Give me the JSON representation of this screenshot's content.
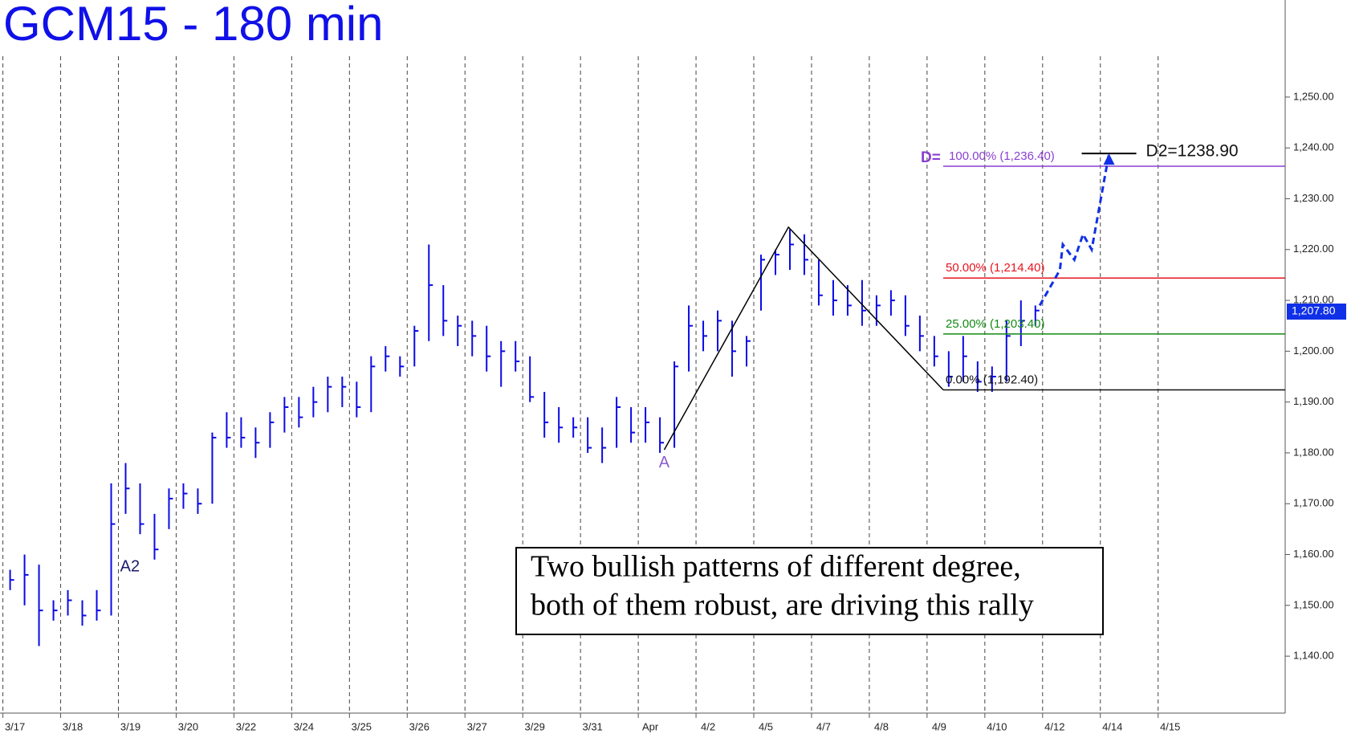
{
  "chart_data": {
    "type": "ohlc",
    "title": "GCM15 - 180 min",
    "color": "#0a0ae6",
    "grid_x": true,
    "xlim": [
      -0.05,
      22.2
    ],
    "ylim": [
      1128.8,
      1269.1
    ],
    "xticks": [
      {
        "value": 0,
        "label": "3/17"
      },
      {
        "value": 1,
        "label": "3/18"
      },
      {
        "value": 2,
        "label": "3/19"
      },
      {
        "value": 3,
        "label": "3/20"
      },
      {
        "value": 4,
        "label": "3/22"
      },
      {
        "value": 5,
        "label": "3/24"
      },
      {
        "value": 6,
        "label": "3/25"
      },
      {
        "value": 7,
        "label": "3/26"
      },
      {
        "value": 8,
        "label": "3/27"
      },
      {
        "value": 9,
        "label": "3/29"
      },
      {
        "value": 10,
        "label": "3/31"
      },
      {
        "value": 11,
        "label": "Apr"
      },
      {
        "value": 12,
        "label": "4/2"
      },
      {
        "value": 13,
        "label": "4/5"
      },
      {
        "value": 14,
        "label": "4/7"
      },
      {
        "value": 15,
        "label": "4/8"
      },
      {
        "value": 16,
        "label": "4/9"
      },
      {
        "value": 17,
        "label": "4/10"
      },
      {
        "value": 18,
        "label": "4/12"
      },
      {
        "value": 19,
        "label": "4/14"
      },
      {
        "value": 20,
        "label": "4/15"
      }
    ],
    "yticks": [
      {
        "value": 1140,
        "label": "1,140.00"
      },
      {
        "value": 1150,
        "label": "1,150.00"
      },
      {
        "value": 1160,
        "label": "1,160.00"
      },
      {
        "value": 1170,
        "label": "1,170.00"
      },
      {
        "value": 1180,
        "label": "1,180.00"
      },
      {
        "value": 1190,
        "label": "1,190.00"
      },
      {
        "value": 1200,
        "label": "1,200.00"
      },
      {
        "value": 1210,
        "label": "1,210.00"
      },
      {
        "value": 1220,
        "label": "1,220.00"
      },
      {
        "value": 1230,
        "label": "1,230.00"
      },
      {
        "value": 1240,
        "label": "1,240.00"
      },
      {
        "value": 1250,
        "label": "1,250.00"
      }
    ],
    "x": [
      0.125,
      0.375,
      0.625,
      0.875,
      1.125,
      1.375,
      1.625,
      1.875,
      2.125,
      2.375,
      2.625,
      2.875,
      3.125,
      3.375,
      3.625,
      3.875,
      4.125,
      4.375,
      4.625,
      4.875,
      5.125,
      5.375,
      5.625,
      5.875,
      6.125,
      6.375,
      6.625,
      6.875,
      7.125,
      7.375,
      7.625,
      7.875,
      8.125,
      8.375,
      8.625,
      8.875,
      9.125,
      9.375,
      9.625,
      9.875,
      10.125,
      10.375,
      10.625,
      10.875,
      11.125,
      11.375,
      11.625,
      11.875,
      12.125,
      12.375,
      12.625,
      12.875,
      13.125,
      13.375,
      13.625,
      13.875,
      14.125,
      14.375,
      14.625,
      14.875,
      15.125,
      15.375,
      15.625,
      15.875,
      16.125,
      16.375,
      16.625,
      16.875,
      17.125,
      17.375,
      17.625,
      17.875
    ],
    "high": [
      1157,
      1160,
      1158,
      1151,
      1153,
      1151,
      1153,
      1174,
      1178,
      1174,
      1168,
      1173,
      1174,
      1173,
      1184,
      1188,
      1187,
      1185,
      1188,
      1191,
      1191,
      1193,
      1195,
      1195,
      1194,
      1199,
      1201,
      1199,
      1205,
      1221,
      1213,
      1207,
      1206,
      1205,
      1202,
      1202,
      1199,
      1192,
      1189,
      1187,
      1187,
      1185,
      1191,
      1189,
      1189,
      1187,
      1198,
      1209,
      1206,
      1208,
      1206,
      1203,
      1219,
      1220,
      1224,
      1223,
      1218,
      1214,
      1213,
      1214,
      1211,
      1212,
      1211,
      1207,
      1203,
      1200,
      1203,
      1198,
      1197,
      1206,
      1210,
      1209
    ],
    "low": [
      1153,
      1150,
      1142,
      1147,
      1148,
      1146,
      1147,
      1148,
      1168,
      1164,
      1159,
      1165,
      1169,
      1168,
      1170,
      1181,
      1181,
      1179,
      1181,
      1184,
      1185,
      1187,
      1188,
      1189,
      1187,
      1188,
      1196,
      1195,
      1197,
      1202,
      1203,
      1201,
      1199,
      1196,
      1193,
      1196,
      1190,
      1183,
      1182,
      1183,
      1180,
      1178,
      1181,
      1182,
      1182,
      1180,
      1181,
      1196,
      1200,
      1200,
      1195,
      1197,
      1208,
      1215,
      1216,
      1215,
      1209,
      1207,
      1207,
      1205,
      1205,
      1207,
      1203,
      1200,
      1197,
      1193,
      1194,
      1192,
      1192,
      1194,
      1201,
      1205
    ],
    "close": [
      1155,
      1156,
      1149,
      1149,
      1151,
      1148,
      1149,
      1166,
      1173,
      1166,
      1161,
      1171,
      1172,
      1170,
      1183,
      1183,
      1183,
      1182,
      1186,
      1189,
      1187,
      1190,
      1193,
      1193,
      1189,
      1197,
      1199,
      1197,
      1204,
      1213,
      1206,
      1205,
      1203,
      1199,
      1200,
      1198,
      1191,
      1186,
      1185,
      1185,
      1181,
      1181,
      1189,
      1184,
      1186,
      1182,
      1197,
      1205,
      1203,
      1206,
      1200,
      1202,
      1218,
      1219,
      1221,
      1218,
      1211,
      1210,
      1209,
      1208,
      1209,
      1210,
      1205,
      1203,
      1199,
      1195,
      1199,
      1194,
      1195,
      1203,
      1206,
      1208
    ],
    "last_price": {
      "value": 1207.8,
      "label": "1,207.80"
    },
    "fib_levels": [
      {
        "prefix": "D=",
        "label": "100.00% (1,236.40)",
        "value": 1236.4,
        "color": "#8a3fd0"
      },
      {
        "label": "50.00% (1,214.40)",
        "value": 1214.4,
        "color": "#e8141e"
      },
      {
        "label": "25.00% (1,203.40)",
        "value": 1203.4,
        "color": "#138a13"
      },
      {
        "label": "0.00% (1,192.40)",
        "value": 1192.4,
        "color": "#111111"
      }
    ],
    "pattern": {
      "x": [
        11.45,
        13.6,
        16.28
      ],
      "values": [
        1180.6,
        1224.4,
        1192.4
      ]
    },
    "projection": {
      "x": [
        17.95,
        18.1,
        18.3,
        18.35,
        18.55,
        18.7,
        18.85,
        19.15
      ],
      "values": [
        1209,
        1212,
        1216,
        1221,
        1218,
        1223,
        1220,
        1238.9
      ]
    },
    "target": {
      "label": "D2=1238.90",
      "value": 1238.9
    },
    "annotations": [
      {
        "text": "A2",
        "x": 2.2,
        "y": 1157.5,
        "color": "#1a1a6e"
      },
      {
        "text": "A",
        "x": 11.45,
        "y": 1178,
        "color": "#8a5fd0"
      }
    ],
    "note": [
      "Two bullish patterns of different degree,",
      "both of them robust, are driving this rally"
    ]
  }
}
